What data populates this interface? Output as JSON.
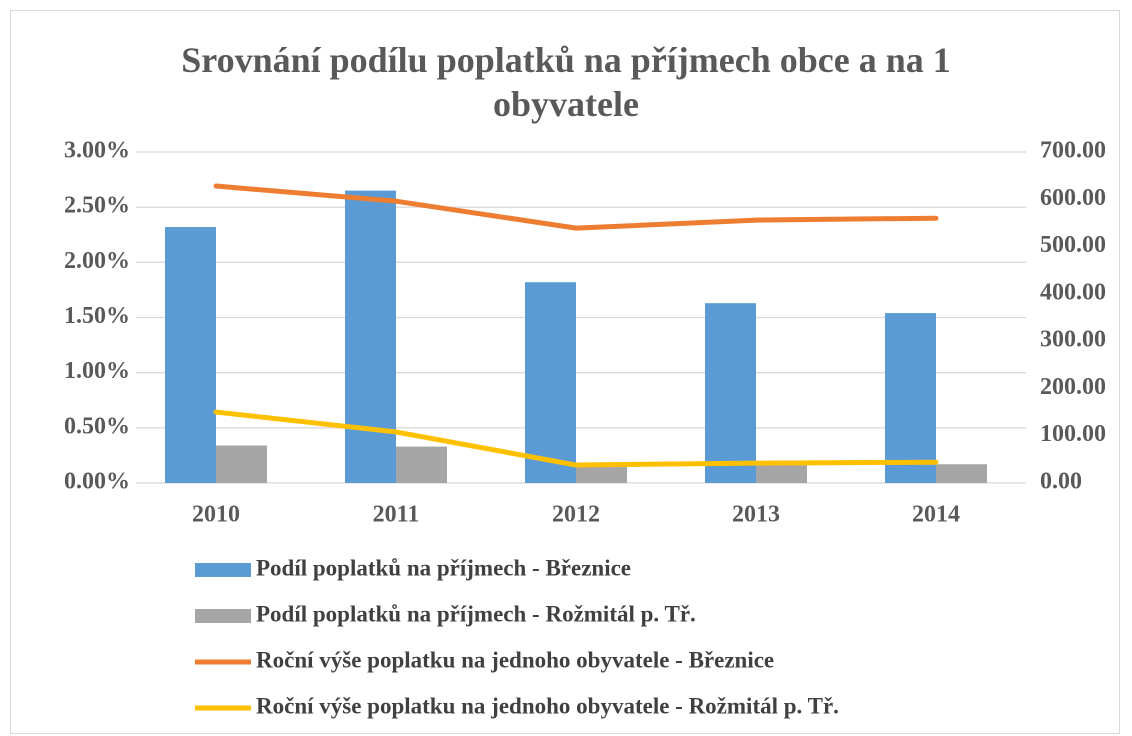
{
  "chart_data": {
    "type": "bar",
    "title": "Srovnání podílu poplatků na příjmech obce a na 1 obyvatele",
    "categories": [
      "2010",
      "2011",
      "2012",
      "2013",
      "2014"
    ],
    "series": [
      {
        "name": "Podíl poplatků na příjmech - Březnice",
        "color": "#5b9bd5",
        "type": "bar",
        "axis": "y",
        "values": [
          2.32,
          2.65,
          1.82,
          1.63,
          1.54
        ]
      },
      {
        "name": "Podíl poplatků na příjmech - Rožmitál p. Tř.",
        "color": "#a5a5a5",
        "type": "bar",
        "axis": "y",
        "values": [
          0.34,
          0.33,
          0.16,
          0.17,
          0.17
        ]
      },
      {
        "name": "Roční výše poplatku na jednoho obyvatele - Březnice",
        "color": "#ed7d31",
        "type": "line",
        "axis": "y2",
        "values": [
          628,
          596,
          539,
          556,
          560
        ]
      },
      {
        "name": "Roční výše poplatku na jednoho obyvatele - Rožmitál p. Tř.",
        "color": "#ffc000",
        "type": "line",
        "axis": "y2",
        "values": [
          150,
          108,
          38,
          42,
          44
        ]
      }
    ],
    "ylim": [
      0,
      3
    ],
    "yticks": [
      {
        "value": 0,
        "label": "0.00%"
      },
      {
        "value": 0.5,
        "label": "0.50%"
      },
      {
        "value": 1,
        "label": "1.00%"
      },
      {
        "value": 1.5,
        "label": "1.50%"
      },
      {
        "value": 2,
        "label": "2.00%"
      },
      {
        "value": 2.5,
        "label": "2.50%"
      },
      {
        "value": 3,
        "label": "3.00%"
      }
    ],
    "y2lim": [
      0,
      700
    ],
    "y2ticks": [
      {
        "value": 0,
        "label": "0.00"
      },
      {
        "value": 100,
        "label": "100.00"
      },
      {
        "value": 200,
        "label": "200.00"
      },
      {
        "value": 300,
        "label": "300.00"
      },
      {
        "value": 400,
        "label": "400.00"
      },
      {
        "value": 500,
        "label": "500.00"
      },
      {
        "value": 600,
        "label": "600.00"
      },
      {
        "value": 700,
        "label": "700.00"
      }
    ],
    "grid": true,
    "legend": "bottom"
  }
}
